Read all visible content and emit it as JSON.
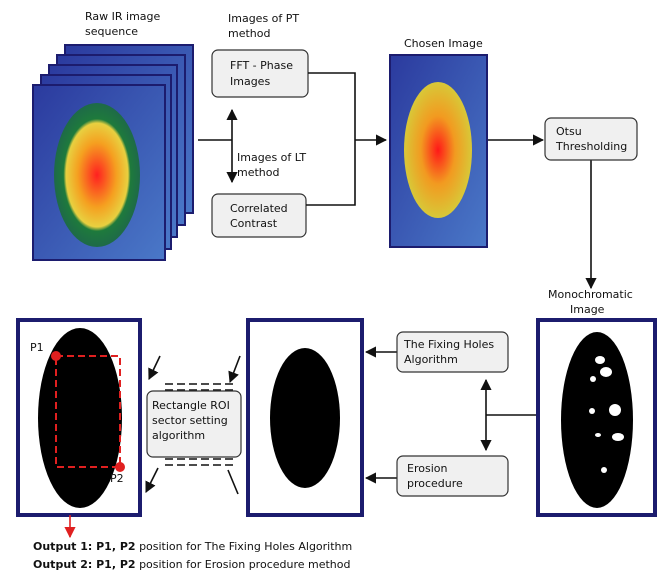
{
  "labels": {
    "raw_sequence": [
      "Raw IR image",
      "sequence"
    ],
    "pt_method": [
      "Images of PT",
      "method"
    ],
    "lt_method": [
      "Images of LT",
      "method"
    ],
    "chosen_image": "Chosen Image",
    "monochromatic": [
      "Monochromatic",
      "Image"
    ],
    "p1": "P1",
    "p2": "P2"
  },
  "boxes": {
    "fft": [
      "FFT - Phase",
      "Images"
    ],
    "correlated": [
      "Correlated",
      "Contrast"
    ],
    "otsu": [
      "Otsu",
      "Thresholding"
    ],
    "fixing_holes": [
      "The Fixing Holes",
      "Algorithm"
    ],
    "erosion": [
      "Erosion",
      "procedure"
    ],
    "rectangle_roi": [
      "Rectangle ROI",
      "sector setting",
      "algorithm"
    ]
  },
  "outputs": [
    {
      "bold": "Output 1: P1, P2",
      "text": "position for The Fixing Holes Algorithm"
    },
    {
      "bold": "Output 2: P1, P2",
      "text": "position for Erosion procedure method"
    }
  ]
}
